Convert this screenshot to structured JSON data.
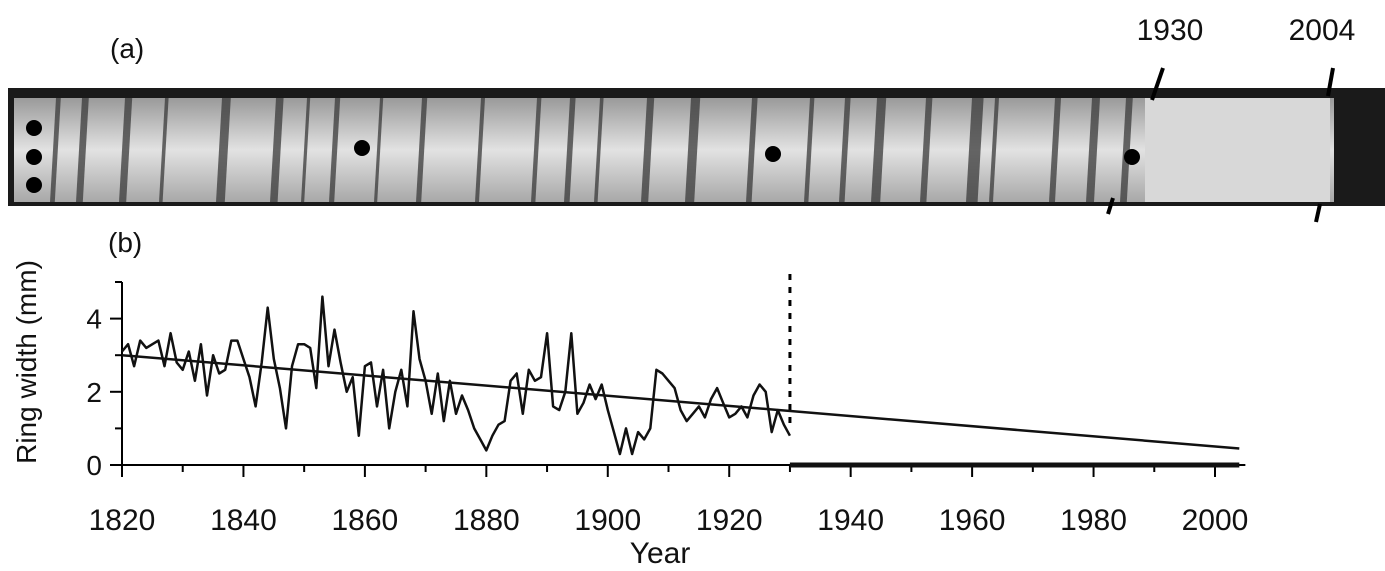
{
  "photo": {
    "label": "(a)",
    "year_labels": [
      "1930",
      "2004"
    ]
  },
  "chart_data": {
    "type": "line",
    "panel_label": "(b)",
    "ylabel": "Ring width (mm)",
    "xlabel": "Year",
    "xlim": [
      1820,
      2005
    ],
    "xticks": [
      1820,
      1840,
      1860,
      1880,
      1900,
      1920,
      1940,
      1960,
      1980,
      2000
    ],
    "xminorticks": [
      1830,
      1850,
      1870,
      1890,
      1910,
      1930,
      1950,
      1970,
      1990
    ],
    "ylim": [
      0,
      5
    ],
    "yticks": [
      0,
      2,
      4
    ],
    "yminorticks": [
      1,
      3,
      5
    ],
    "divider_x": 1930,
    "series": [
      {
        "color": "#111111",
        "width": 2.5,
        "x": [
          1820,
          1821,
          1822,
          1823,
          1824,
          1825,
          1826,
          1827,
          1828,
          1829,
          1830,
          1831,
          1832,
          1833,
          1834,
          1835,
          1836,
          1837,
          1838,
          1839,
          1840,
          1841,
          1842,
          1843,
          1844,
          1845,
          1846,
          1847,
          1848,
          1849,
          1850,
          1851,
          1852,
          1853,
          1854,
          1855,
          1856,
          1857,
          1858,
          1859,
          1860,
          1861,
          1862,
          1863,
          1864,
          1865,
          1866,
          1867,
          1868,
          1869,
          1870,
          1871,
          1872,
          1873,
          1874,
          1875,
          1876,
          1877,
          1878,
          1879,
          1880,
          1881,
          1882,
          1883,
          1884,
          1885,
          1886,
          1887,
          1888,
          1889,
          1890,
          1891,
          1892,
          1893,
          1894,
          1895,
          1896,
          1897,
          1898,
          1899,
          1900,
          1901,
          1902,
          1903,
          1904,
          1905,
          1906,
          1907,
          1908,
          1909,
          1910,
          1911,
          1912,
          1913,
          1914,
          1915,
          1916,
          1917,
          1918,
          1919,
          1920,
          1921,
          1922,
          1923,
          1924,
          1925,
          1926,
          1927,
          1928,
          1929,
          1930
        ],
        "values": [
          3.1,
          3.3,
          2.7,
          3.4,
          3.2,
          3.3,
          3.4,
          2.7,
          3.6,
          2.8,
          2.6,
          3.1,
          2.3,
          3.3,
          1.9,
          3.0,
          2.5,
          2.6,
          3.4,
          3.4,
          2.9,
          2.4,
          1.6,
          2.8,
          4.3,
          2.9,
          2.1,
          1.0,
          2.7,
          3.3,
          3.3,
          3.2,
          2.1,
          4.6,
          2.7,
          3.7,
          2.8,
          2.0,
          2.4,
          0.8,
          2.7,
          2.8,
          1.6,
          2.6,
          1.0,
          2.0,
          2.6,
          1.6,
          4.2,
          2.9,
          2.3,
          1.4,
          2.5,
          1.2,
          2.3,
          1.4,
          1.9,
          1.5,
          1.0,
          0.7,
          0.4,
          0.8,
          1.1,
          1.2,
          2.3,
          2.5,
          1.4,
          2.6,
          2.3,
          2.4,
          3.6,
          1.6,
          1.5,
          2.0,
          3.6,
          1.4,
          1.7,
          2.2,
          1.8,
          2.2,
          1.5,
          0.9,
          0.3,
          1.0,
          0.3,
          0.9,
          0.7,
          1.0,
          2.6,
          2.5,
          2.3,
          2.1,
          1.5,
          1.2,
          1.4,
          1.6,
          1.3,
          1.8,
          2.1,
          1.7,
          1.3,
          1.4,
          1.6,
          1.3,
          1.9,
          2.2,
          2.0,
          0.9,
          1.5,
          1.1,
          0.8
        ]
      },
      {
        "color": "#111111",
        "width": 5,
        "x": [
          1930,
          2004
        ],
        "values": [
          0,
          0
        ]
      },
      {
        "color": "#111111",
        "width": 2.5,
        "x": [
          1820,
          2004
        ],
        "values": [
          3.0,
          0.45
        ]
      }
    ]
  }
}
